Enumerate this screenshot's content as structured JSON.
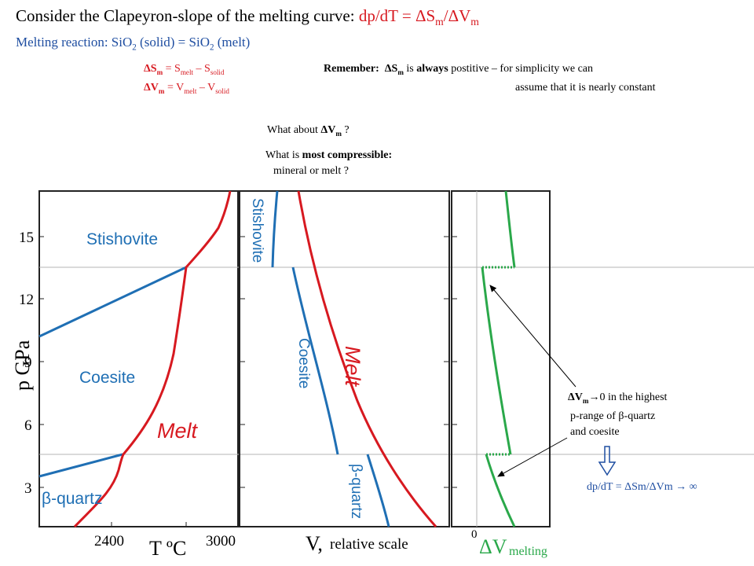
{
  "title": {
    "prefix": "Consider the Clapeyron-slope of the melting curve:",
    "formula_lhs": "dp/dT = ",
    "formula_sym": "ΔS",
    "formula_sub1": "m",
    "formula_mid": "/ΔV",
    "formula_sub2": "m"
  },
  "subtitle": {
    "text1": "Melting reaction: SiO",
    "sub1": "2",
    "text2": " (solid) = SiO",
    "sub2": "2",
    "text3": " (melt)"
  },
  "definitions": {
    "ds_sym": "ΔS",
    "ds_sub": "m",
    "ds_eq": " = S",
    "ds_melt": "melt",
    "ds_minus": " – S",
    "ds_solid": "solid",
    "dv_sym": "ΔV",
    "dv_sub": "m",
    "dv_eq": " = V",
    "dv_melt": "melt",
    "dv_minus": " – V",
    "dv_solid": "solid"
  },
  "remember": {
    "label": "Remember:",
    "ds_sym": "ΔS",
    "ds_sub": "m",
    "is": " is ",
    "always": "always",
    "rest1": " postitive – for simplicity we can",
    "rest2": "assume that it is nearly constant"
  },
  "question1": {
    "text": "What about ",
    "sym": "ΔV",
    "sub": "m",
    "end": " ?"
  },
  "question2": {
    "prefix": "What is ",
    "bold": "most compressible:",
    "line2": "mineral or melt ?"
  },
  "note": {
    "sym": "ΔV",
    "sub": "m",
    "arrow_text": "→0  in the highest",
    "line2": "p-range of β-quartz",
    "line3": "and coesite"
  },
  "bottom_formula": "dp/dT = ΔSm/ΔVm → ∞",
  "phase_diagram": {
    "y_axis_label": "p GPa",
    "y_ticks": [
      "15",
      "12",
      "9",
      "6",
      "3"
    ],
    "x_ticks": [
      "2400",
      "3000"
    ],
    "x_axis_label": "T ºC",
    "labels": {
      "stishovite": "Stishovite",
      "coesite": "Coesite",
      "beta_quartz": "β-quartz",
      "melt": "Melt"
    }
  },
  "volume_diagram": {
    "x_axis_label": "V,",
    "x_axis_suffix": " relative scale",
    "labels": {
      "stishovite": "Stishovite",
      "coesite": "Coesite",
      "melt": "Melt",
      "beta_quartz": "β-quartz"
    }
  },
  "delta_v_diagram": {
    "zero_label": "0",
    "axis_label": "ΔV",
    "axis_sub": "melting"
  },
  "colors": {
    "red": "#d71920",
    "blue": "#1f6fb4",
    "green": "#2aa84a",
    "title_blue": "#1f4ea1",
    "gray": "#b4b4b4"
  }
}
